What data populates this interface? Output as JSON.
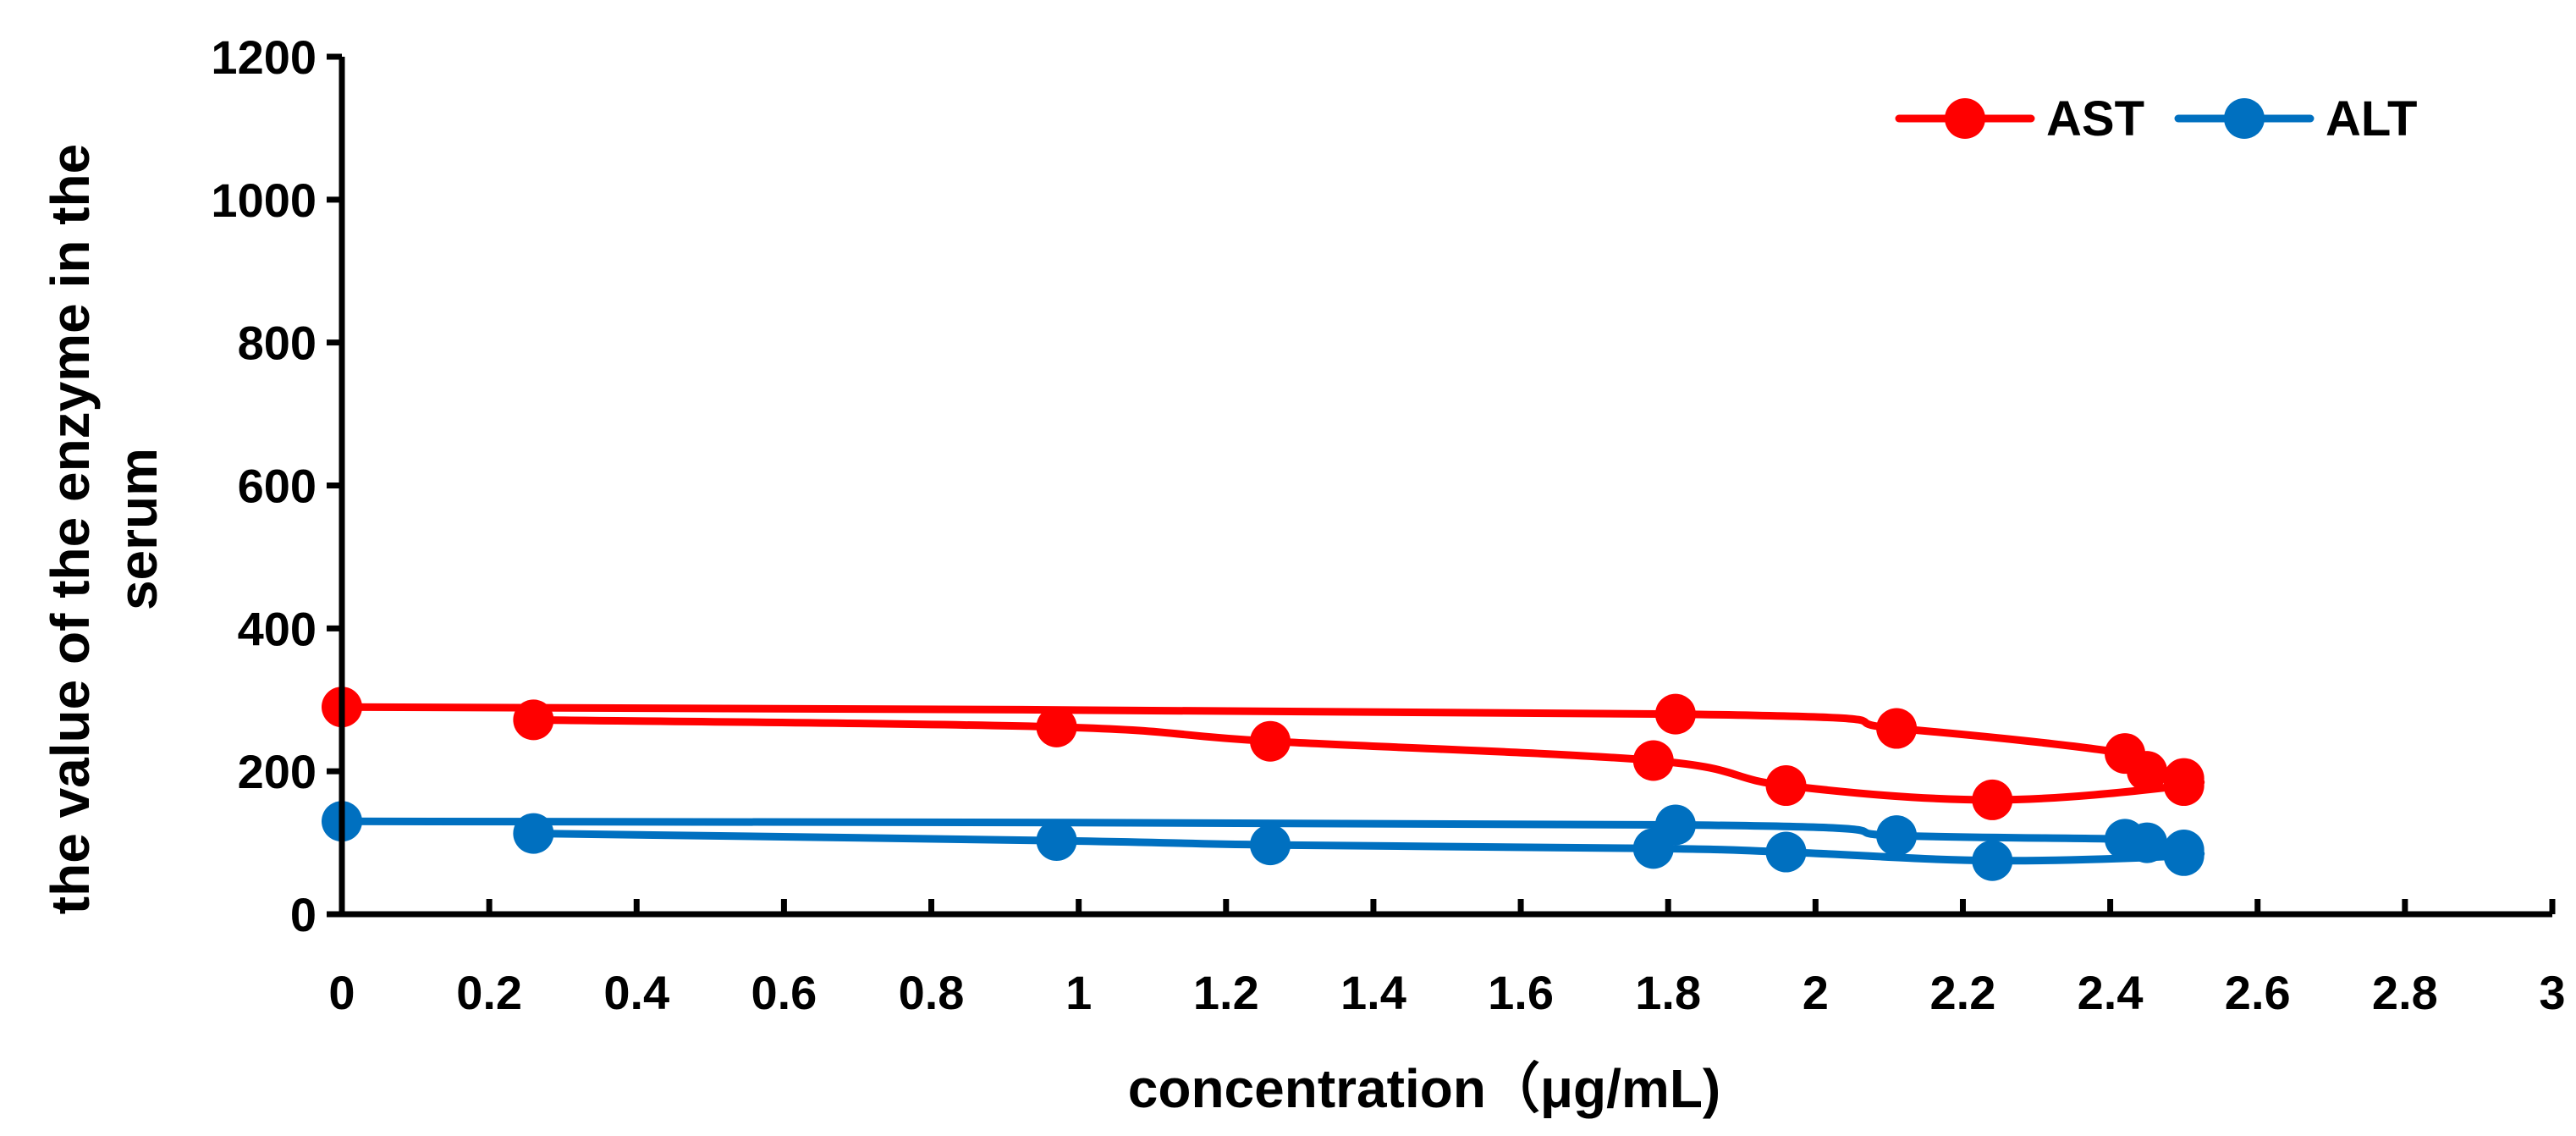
{
  "chart_data": {
    "type": "line",
    "title": "",
    "xlabel": "concentration（μg/mL)",
    "ylabel_lines": [
      "the value of the enzyme in the",
      "serum"
    ],
    "xlim": [
      0,
      3
    ],
    "ylim": [
      0,
      1200
    ],
    "xticks": [
      0,
      0.2,
      0.4,
      0.6,
      0.8,
      1,
      1.2,
      1.4,
      1.6,
      1.8,
      2,
      2.2,
      2.4,
      2.6,
      2.8,
      3
    ],
    "xtick_labels": [
      "0",
      "0.2",
      "0.4",
      "0.6",
      "0.8",
      "1",
      "1.2",
      "1.4",
      "1.6",
      "1.8",
      "2",
      "2.2",
      "2.4",
      "2.6",
      "2.8",
      "3"
    ],
    "yticks": [
      0,
      200,
      400,
      600,
      800,
      1000,
      1200
    ],
    "ytick_labels": [
      "0",
      "200",
      "400",
      "600",
      "800",
      "1000",
      "1200"
    ],
    "grid": false,
    "legend_position": "top-right",
    "series": [
      {
        "name": "AST",
        "color": "#ff0000",
        "x": [
          0,
          1.81,
          2.11,
          2.42,
          2.45,
          2.5,
          2.5,
          2.24,
          1.96,
          1.78,
          1.26,
          0.97,
          0.26
        ],
        "y": [
          290,
          280,
          260,
          225,
          200,
          190,
          180,
          160,
          180,
          215,
          242,
          262,
          272
        ]
      },
      {
        "name": "ALT",
        "color": "#0070c0",
        "x": [
          0,
          1.81,
          2.11,
          2.42,
          2.45,
          2.5,
          2.5,
          2.24,
          1.96,
          1.78,
          1.26,
          0.97,
          0.26
        ],
        "y": [
          130,
          125,
          110,
          105,
          100,
          90,
          82,
          75,
          87,
          92,
          97,
          103,
          113
        ]
      }
    ]
  }
}
